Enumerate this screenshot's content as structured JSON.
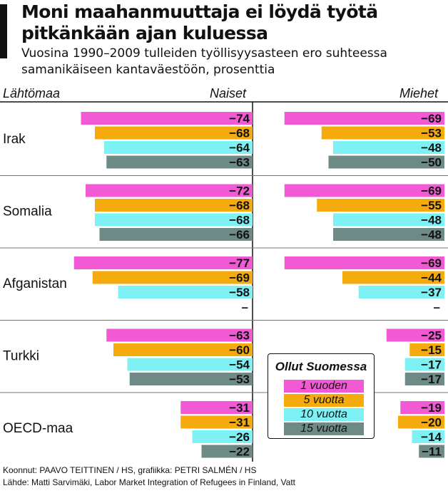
{
  "title": "Moni maahanmuuttaja ei löydä työtä pitkänkään ajan kuluessa",
  "subtitle": "Vuosina 1990–2009 tulleiden työllisyysasteen ero suhteessa samanikäiseen kantaväestöön, prosenttia",
  "columns": {
    "country": "Lähtömaa",
    "women": "Naiset",
    "men": "Miehet"
  },
  "legend": {
    "title": "Ollut Suomessa",
    "items": [
      "1 vuoden",
      "5 vuotta",
      "10 vuotta",
      "15 vuotta"
    ]
  },
  "colors": {
    "1 vuoden": "#f15ad4",
    "5 vuotta": "#f5ab0d",
    "10 vuotta": "#7df1f3",
    "15 vuotta": "#6e8a86"
  },
  "credits": {
    "line1": "Koonnut: PAAVO TEITTINEN / HS, grafiikka: PETRI SALMÉN / HS",
    "line2": "Lähde: Matti Sarvimäki, Labor Market Integration of Refugees in Finland, Vatt"
  },
  "chart_data": {
    "type": "bar",
    "orientation": "horizontal",
    "categories": [
      "Irak",
      "Somalia",
      "Afganistan",
      "Turkki",
      "OECD-maa"
    ],
    "panels": [
      {
        "name": "Naiset",
        "series": [
          {
            "name": "1 vuoden",
            "values": [
              -74,
              -72,
              -77,
              -63,
              -31
            ]
          },
          {
            "name": "5 vuotta",
            "values": [
              -68,
              -68,
              -69,
              -60,
              -31
            ]
          },
          {
            "name": "10 vuotta",
            "values": [
              -64,
              -68,
              -58,
              -54,
              -26
            ]
          },
          {
            "name": "15 vuotta",
            "values": [
              -63,
              -66,
              null,
              -53,
              -22
            ]
          }
        ]
      },
      {
        "name": "Miehet",
        "series": [
          {
            "name": "1 vuoden",
            "values": [
              -69,
              -69,
              -69,
              -25,
              -19
            ]
          },
          {
            "name": "5 vuotta",
            "values": [
              -53,
              -55,
              -44,
              -15,
              -20
            ]
          },
          {
            "name": "10 vuotta",
            "values": [
              -48,
              -48,
              -37,
              -17,
              -14
            ]
          },
          {
            "name": "15 vuotta",
            "values": [
              -50,
              -48,
              null,
              -17,
              -11
            ]
          }
        ]
      }
    ],
    "missing_label": "–",
    "xlim": [
      -80,
      0
    ],
    "grid": false,
    "legend_position": "bottom-right"
  }
}
